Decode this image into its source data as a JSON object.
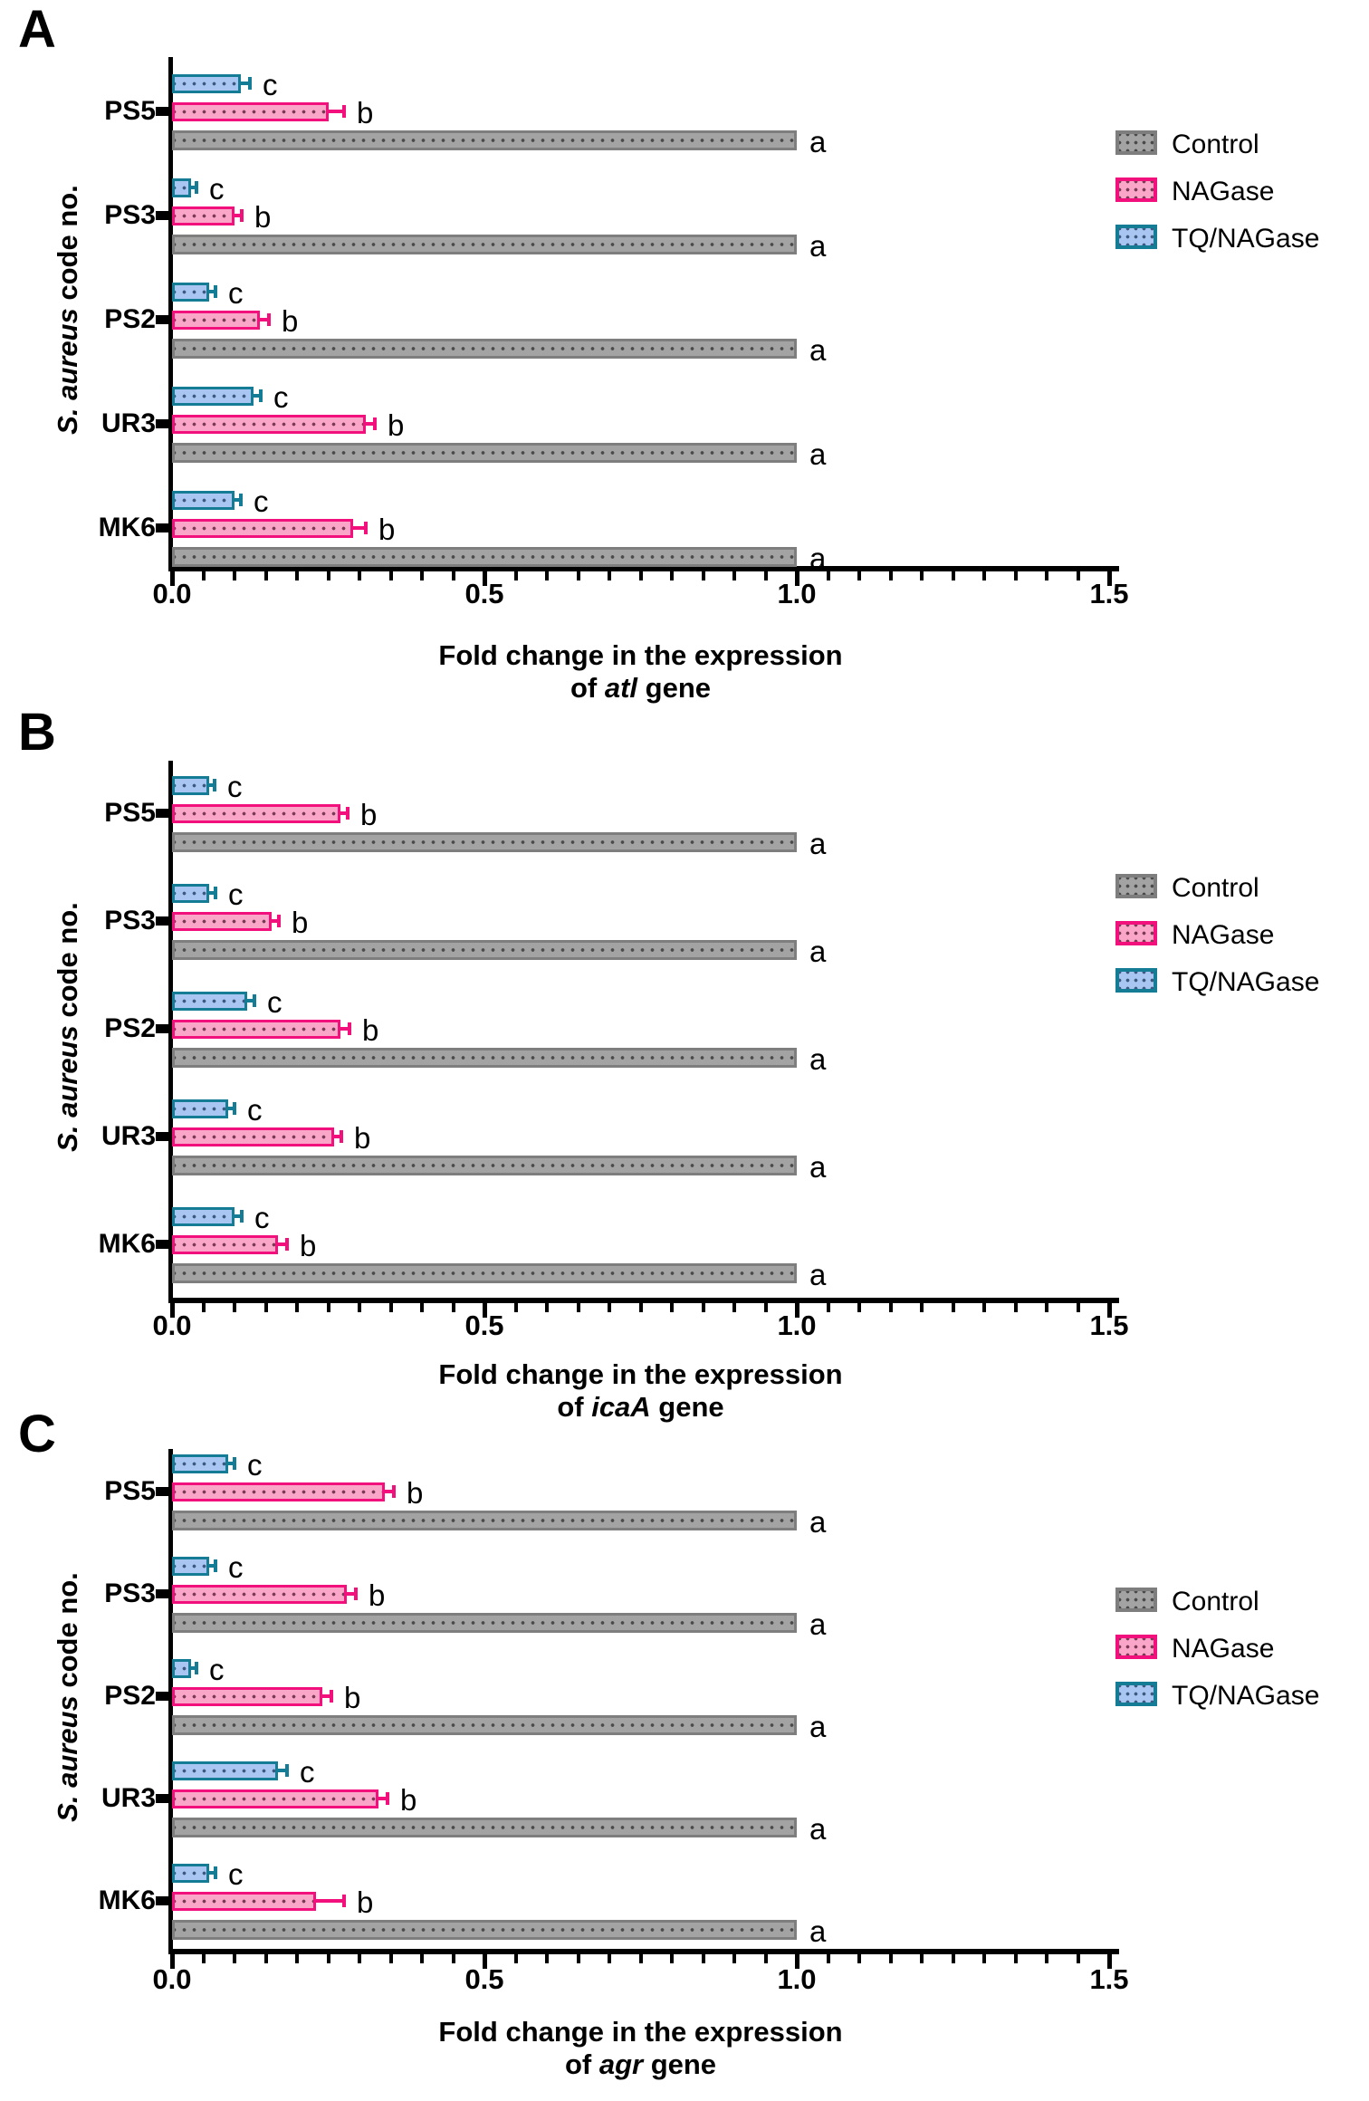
{
  "figure": {
    "y_axis_label": {
      "italic_part": "S. aureus",
      "regular_part": " code no."
    },
    "x_axis": {
      "tick_labels": [
        "0.0",
        "0.5",
        "1.0",
        "1.5"
      ],
      "tick_values": [
        0,
        0.5,
        1.0,
        1.5
      ],
      "minor_step": 0.05,
      "range": [
        0,
        1.5
      ]
    },
    "legend": {
      "items": [
        {
          "label": "Control",
          "key": "control"
        },
        {
          "label": "NAGase",
          "key": "nagase"
        },
        {
          "label": "TQ/NAGase",
          "key": "tq"
        }
      ]
    },
    "colors": {
      "control": {
        "border": "#7E7E7E",
        "fill": "#A3A3A3",
        "dots": "#4a4a4a"
      },
      "nagase": {
        "border": "#F2107C",
        "fill": "#F9A6C9",
        "dots": "#7a3a55"
      },
      "tq": {
        "border": "#147C94",
        "fill": "#A9C6F2",
        "dots": "#3c5a80"
      },
      "axis": "#000000"
    }
  },
  "chart_data": [
    {
      "type": "bar",
      "orientation": "horizontal",
      "panel_letter": "A",
      "title_line1": "Fold change in the expression",
      "title_line2": {
        "prefix": "of ",
        "gene": "atl",
        "suffix": " gene"
      },
      "ylabel": "S. aureus code no.",
      "xlim": [
        0,
        1.5
      ],
      "categories": [
        "PS5",
        "PS3",
        "PS2",
        "UR3",
        "MK6"
      ],
      "series": [
        {
          "name": "TQ/NAGase",
          "key": "tq",
          "values": [
            0.11,
            0.03,
            0.06,
            0.13,
            0.1
          ],
          "errors": [
            0.015,
            0.008,
            0.01,
            0.012,
            0.01
          ],
          "sig_letters": [
            "c",
            "c",
            "c",
            "c",
            "c"
          ]
        },
        {
          "name": "NAGase",
          "key": "nagase",
          "values": [
            0.25,
            0.1,
            0.14,
            0.31,
            0.29
          ],
          "errors": [
            0.025,
            0.012,
            0.015,
            0.015,
            0.02
          ],
          "sig_letters": [
            "b",
            "b",
            "b",
            "b",
            "b"
          ]
        },
        {
          "name": "Control",
          "key": "control",
          "values": [
            1.0,
            1.0,
            1.0,
            1.0,
            1.0
          ],
          "errors": [
            0,
            0,
            0,
            0,
            0
          ],
          "sig_letters": [
            "a",
            "a",
            "a",
            "a",
            "a"
          ]
        }
      ]
    },
    {
      "type": "bar",
      "orientation": "horizontal",
      "panel_letter": "B",
      "title_line1": "Fold change in the expression",
      "title_line2": {
        "prefix": "of ",
        "gene": "icaA",
        "suffix": " gene"
      },
      "ylabel": "S. aureus code no.",
      "xlim": [
        0,
        1.5
      ],
      "categories": [
        "PS5",
        "PS3",
        "PS2",
        "UR3",
        "MK6"
      ],
      "series": [
        {
          "name": "TQ/NAGase",
          "key": "tq",
          "values": [
            0.06,
            0.06,
            0.12,
            0.09,
            0.1
          ],
          "errors": [
            0.008,
            0.01,
            0.012,
            0.01,
            0.012
          ],
          "sig_letters": [
            "c",
            "c",
            "c",
            "c",
            "c"
          ]
        },
        {
          "name": "NAGase",
          "key": "nagase",
          "values": [
            0.27,
            0.16,
            0.27,
            0.26,
            0.17
          ],
          "errors": [
            0.012,
            0.012,
            0.015,
            0.012,
            0.015
          ],
          "sig_letters": [
            "b",
            "b",
            "b",
            "b",
            "b"
          ]
        },
        {
          "name": "Control",
          "key": "control",
          "values": [
            1.0,
            1.0,
            1.0,
            1.0,
            1.0
          ],
          "errors": [
            0,
            0,
            0,
            0,
            0
          ],
          "sig_letters": [
            "a",
            "a",
            "a",
            "a",
            "a"
          ]
        }
      ]
    },
    {
      "type": "bar",
      "orientation": "horizontal",
      "panel_letter": "C",
      "title_line1": "Fold change in the expression",
      "title_line2": {
        "prefix": "of ",
        "gene": "agr",
        "suffix": " gene"
      },
      "ylabel": "S. aureus code no.",
      "xlim": [
        0,
        1.5
      ],
      "categories": [
        "PS5",
        "PS3",
        "PS2",
        "UR3",
        "MK6"
      ],
      "series": [
        {
          "name": "TQ/NAGase",
          "key": "tq",
          "values": [
            0.09,
            0.06,
            0.03,
            0.17,
            0.06
          ],
          "errors": [
            0.01,
            0.01,
            0.008,
            0.015,
            0.01
          ],
          "sig_letters": [
            "c",
            "c",
            "c",
            "c",
            "c"
          ]
        },
        {
          "name": "NAGase",
          "key": "nagase",
          "values": [
            0.34,
            0.28,
            0.24,
            0.33,
            0.23
          ],
          "errors": [
            0.015,
            0.015,
            0.015,
            0.015,
            0.045
          ],
          "sig_letters": [
            "b",
            "b",
            "b",
            "b",
            "b"
          ]
        },
        {
          "name": "Control",
          "key": "control",
          "values": [
            1.0,
            1.0,
            1.0,
            1.0,
            1.0
          ],
          "errors": [
            0,
            0,
            0,
            0,
            0
          ],
          "sig_letters": [
            "a",
            "a",
            "a",
            "a",
            "a"
          ]
        }
      ]
    }
  ]
}
